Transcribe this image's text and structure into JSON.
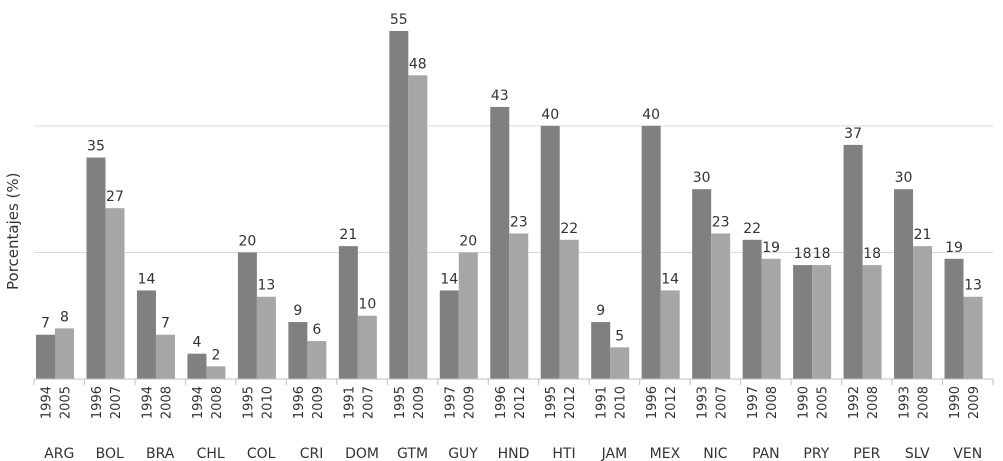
{
  "chart_data": {
    "type": "bar",
    "ylabel": "Porcentajes (%)",
    "xlabel": "",
    "title": "",
    "ylim": [
      0,
      55
    ],
    "grid": "horizontal",
    "categories": [
      "ARG",
      "BOL",
      "BRA",
      "CHL",
      "COL",
      "CRI",
      "DOM",
      "GTM",
      "GUY",
      "HND",
      "HTI",
      "JAM",
      "MEX",
      "NIC",
      "PAN",
      "PRY",
      "PER",
      "SLV",
      "VEN"
    ],
    "years_first": [
      "1994",
      "1996",
      "1994",
      "1994",
      "1995",
      "1996",
      "1991",
      "1995",
      "1997",
      "1996",
      "1995",
      "1991",
      "1996",
      "1993",
      "1997",
      "1990",
      "1992",
      "1993",
      "1990"
    ],
    "years_second": [
      "2005",
      "2007",
      "2008",
      "2008",
      "2010",
      "2009",
      "2007",
      "2009",
      "2009",
      "2012",
      "2012",
      "2010",
      "2012",
      "2007",
      "2008",
      "2005",
      "2008",
      "2008",
      "2009"
    ],
    "series": [
      {
        "color": "#808080",
        "values": [
          7,
          35,
          14,
          4,
          20,
          9,
          21,
          55,
          14,
          43,
          40,
          9,
          40,
          30,
          22,
          18,
          37,
          30,
          19
        ]
      },
      {
        "color": "#a6a6a6",
        "values": [
          8,
          27,
          7,
          2,
          13,
          6,
          10,
          48,
          20,
          23,
          22,
          5,
          14,
          23,
          19,
          18,
          18,
          21,
          13
        ]
      }
    ]
  }
}
